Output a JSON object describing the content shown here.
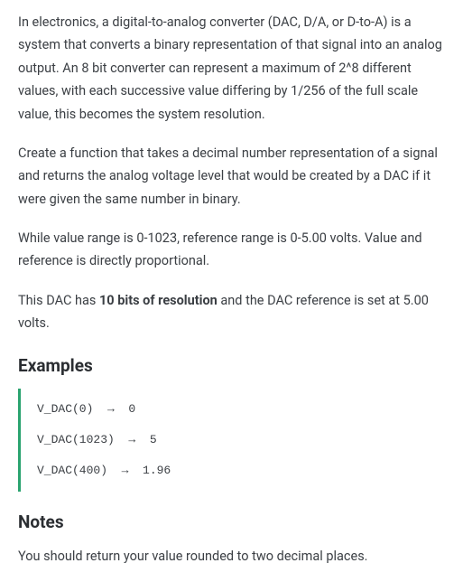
{
  "intro": {
    "p1": "In electronics, a digital-to-analog converter (DAC, D/A, or D-to-A) is a system that converts a binary representation of that signal into an analog output. An 8 bit converter can represent a maximum of 2^8 different values, with each successive value differing by 1/256 of the full scale value, this becomes the system resolution.",
    "p2": "Create a function that takes a decimal number representation of a signal and returns the analog voltage level that would be created by a DAC if it were given the same number in binary.",
    "p3": "While value range is 0-1023, reference range is 0-5.00 volts. Value and reference is directly proportional.",
    "p4_prefix": "This DAC has ",
    "p4_strong": "10 bits of resolution",
    "p4_suffix": " and the DAC reference is set at 5.00 volts."
  },
  "examples": {
    "heading": "Examples",
    "lines": [
      "V_DAC(0)  →  0",
      "V_DAC(1023)  →  5",
      "V_DAC(400)  →  1.96"
    ],
    "accent_color": "#2aa36f"
  },
  "notes": {
    "heading": "Notes",
    "p1": "You should return your value rounded to two decimal places."
  },
  "style": {
    "text_color": "#3b3f44",
    "heading_color": "#2b2e32",
    "background": "#ffffff"
  }
}
